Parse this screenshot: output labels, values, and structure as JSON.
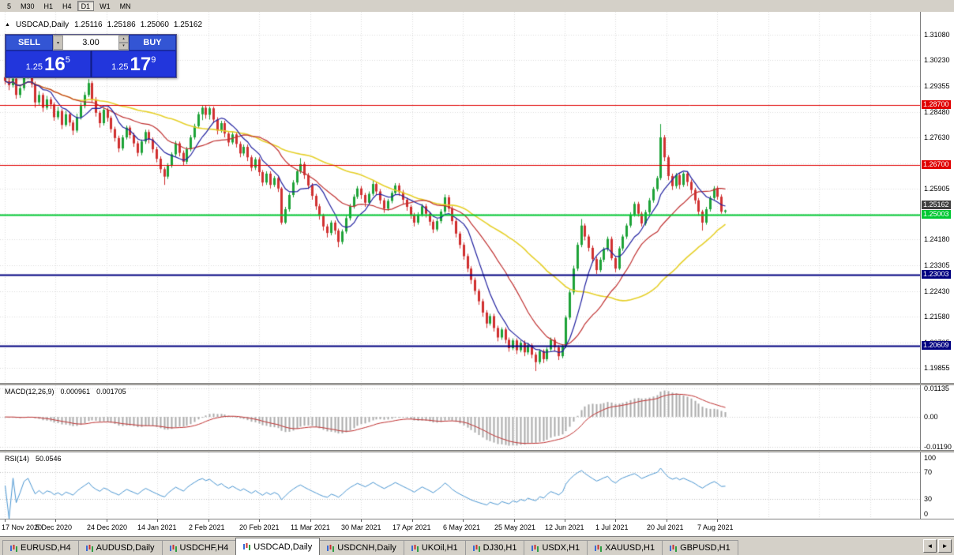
{
  "icons": {
    "triangle": "▲",
    "caret_up": "▴",
    "caret_down": "▾",
    "arrow_left": "◄",
    "arrow_right": "►"
  },
  "toolbar": {
    "buttons": [
      "5",
      "M30",
      "H1",
      "H4",
      "D1",
      "W1",
      "MN"
    ],
    "active": "D1"
  },
  "chart": {
    "title": "USDCAD,Daily",
    "open": "1.25116",
    "high": "1.25186",
    "low": "1.25060",
    "close": "1.25162",
    "price_range": {
      "max": 1.3185,
      "min": 1.1935
    },
    "colors": {
      "up": "#1da237",
      "down": "#d03030",
      "ma_fast": "#2020a0",
      "ma_mid": "#c03030",
      "ma_slow": "#e6d029",
      "grid": "#dcdcdc",
      "bg": "#ffffff"
    },
    "y_axis_labels": [
      "1.31080",
      "1.30230",
      "1.29355",
      "1.28480",
      "1.27630",
      "1.26755",
      "1.25905",
      "1.25030",
      "1.24180",
      "1.23305",
      "1.22430",
      "1.21580",
      "1.20705",
      "1.19855"
    ],
    "x_axis_labels": [
      "17 Nov 2020",
      "5 Dec 2020",
      "24 Dec 2020",
      "14 Jan 2021",
      "2 Feb 2021",
      "20 Feb 2021",
      "11 Mar 2021",
      "30 Mar 2021",
      "17 Apr 2021",
      "6 May 2021",
      "25 May 2021",
      "12 Jun 2021",
      "1 Jul 2021",
      "20 Jul 2021",
      "7 Aug 2021"
    ],
    "hlines": [
      {
        "price": 1.287,
        "label": "1.28700",
        "color": "#e00000",
        "width": 1
      },
      {
        "price": 1.267,
        "label": "1.26700",
        "color": "#e00000",
        "width": 1
      },
      {
        "price": 1.25003,
        "label": "1.25003",
        "color": "#00c832",
        "width": 2
      },
      {
        "price": 1.23003,
        "label": "1.23003",
        "color": "#000080",
        "width": 2
      },
      {
        "price": 1.20609,
        "label": "1.20609",
        "color": "#000080",
        "width": 2
      }
    ],
    "price_tag": {
      "label": "1.25162",
      "price": 1.25162,
      "bg": "#404040"
    }
  },
  "trade_panel": {
    "sell_label": "SELL",
    "buy_label": "BUY",
    "volume": "3.00",
    "sell_price": {
      "prefix": "1.25",
      "pips": "16",
      "point": "5"
    },
    "buy_price": {
      "prefix": "1.25",
      "pips": "17",
      "point": "9"
    }
  },
  "indicators": {
    "macd": {
      "label": "MACD(12,26,9)",
      "value1": "0.000961",
      "value2": "0.001705",
      "axis_labels": [
        "0.01135",
        "0.00",
        "-0.01190"
      ],
      "range": {
        "max": 0.01262,
        "min": -0.01317
      },
      "histogram_color": "#ababab",
      "signal_color": "#c03030"
    },
    "rsi": {
      "label": "RSI(14)",
      "value": "50.0546",
      "axis_labels": [
        "100",
        "70",
        "30",
        "0"
      ],
      "levels": [
        70,
        30
      ],
      "line_color": "#4a96d2"
    }
  },
  "tabs": {
    "items": [
      {
        "label": "EURUSD,H4",
        "active": false
      },
      {
        "label": "AUDUSD,Daily",
        "active": false
      },
      {
        "label": "USDCHF,H4",
        "active": false
      },
      {
        "label": "USDCAD,Daily",
        "active": true
      },
      {
        "label": "USDCNH,Daily",
        "active": false
      },
      {
        "label": "UKOil,H1",
        "active": false
      },
      {
        "label": "DJ30,H1",
        "active": false
      },
      {
        "label": "USDX,H1",
        "active": false
      },
      {
        "label": "XAUUSD,H1",
        "active": false
      },
      {
        "label": "GBPUSD,H1",
        "active": false
      }
    ]
  },
  "tab_nav": {
    "left": "◄",
    "right": "►"
  },
  "chart_data": {
    "type": "candlestick",
    "symbol": "USDCAD",
    "timeframe": "Daily",
    "candles": [
      [
        1.2965,
        1.2978,
        1.294,
        1.2952
      ],
      [
        1.2952,
        1.2962,
        1.2921,
        1.2938
      ],
      [
        1.2938,
        1.2975,
        1.293,
        1.296
      ],
      [
        1.296,
        1.2968,
        1.2892,
        1.2905
      ],
      [
        1.2905,
        1.294,
        1.2895,
        1.2928
      ],
      [
        1.2928,
        1.2985,
        1.292,
        1.2972
      ],
      [
        1.2972,
        1.3004,
        1.296,
        1.299
      ],
      [
        1.299,
        1.2998,
        1.293,
        1.2941
      ],
      [
        1.2941,
        1.295,
        1.2862,
        1.288
      ],
      [
        1.288,
        1.2918,
        1.287,
        1.2905
      ],
      [
        1.2905,
        1.2912,
        1.2848,
        1.2862
      ],
      [
        1.2862,
        1.2902,
        1.2855,
        1.289
      ],
      [
        1.289,
        1.2898,
        1.2858,
        1.2873
      ],
      [
        1.2873,
        1.288,
        1.2818,
        1.283
      ],
      [
        1.283,
        1.2865,
        1.2822,
        1.2851
      ],
      [
        1.2851,
        1.2858,
        1.279,
        1.2804
      ],
      [
        1.2804,
        1.2852,
        1.2798,
        1.284
      ],
      [
        1.284,
        1.2848,
        1.28,
        1.2812
      ],
      [
        1.2812,
        1.282,
        1.277,
        1.2785
      ],
      [
        1.2785,
        1.2842,
        1.2778,
        1.283
      ],
      [
        1.283,
        1.288,
        1.2822,
        1.2868
      ],
      [
        1.2868,
        1.2915,
        1.286,
        1.2905
      ],
      [
        1.2905,
        1.2958,
        1.2898,
        1.2945
      ],
      [
        1.2945,
        1.2952,
        1.2878,
        1.289
      ],
      [
        1.289,
        1.2898,
        1.2832,
        1.2845
      ],
      [
        1.2845,
        1.2852,
        1.2795,
        1.281
      ],
      [
        1.281,
        1.2862,
        1.2802,
        1.2855
      ],
      [
        1.2855,
        1.2862,
        1.2815,
        1.2828
      ],
      [
        1.2828,
        1.2835,
        1.2778,
        1.279
      ],
      [
        1.279,
        1.2798,
        1.2748,
        1.276
      ],
      [
        1.276,
        1.2768,
        1.2712,
        1.2725
      ],
      [
        1.2725,
        1.277,
        1.2718,
        1.2762
      ],
      [
        1.2762,
        1.2802,
        1.2755,
        1.2795
      ],
      [
        1.2795,
        1.2802,
        1.2758,
        1.277
      ],
      [
        1.277,
        1.2778,
        1.273,
        1.2742
      ],
      [
        1.2742,
        1.275,
        1.2698,
        1.271
      ],
      [
        1.271,
        1.2755,
        1.2702,
        1.2748
      ],
      [
        1.2748,
        1.2788,
        1.274,
        1.278
      ],
      [
        1.278,
        1.2788,
        1.2742,
        1.2755
      ],
      [
        1.2755,
        1.2762,
        1.271,
        1.2722
      ],
      [
        1.2722,
        1.273,
        1.2678,
        1.269
      ],
      [
        1.269,
        1.2698,
        1.2642,
        1.2655
      ],
      [
        1.2655,
        1.2662,
        1.2602,
        1.263
      ],
      [
        1.263,
        1.2675,
        1.2622,
        1.2668
      ],
      [
        1.2668,
        1.2712,
        1.266,
        1.2705
      ],
      [
        1.2705,
        1.275,
        1.2698,
        1.2742
      ],
      [
        1.2742,
        1.2748,
        1.2698,
        1.271
      ],
      [
        1.271,
        1.2718,
        1.2668,
        1.268
      ],
      [
        1.268,
        1.273,
        1.2672,
        1.2722
      ],
      [
        1.2722,
        1.277,
        1.2715,
        1.2762
      ],
      [
        1.2762,
        1.2808,
        1.2755,
        1.28
      ],
      [
        1.28,
        1.2848,
        1.2792,
        1.284
      ],
      [
        1.284,
        1.2868,
        1.282,
        1.2862
      ],
      [
        1.2862,
        1.287,
        1.2825,
        1.2838
      ],
      [
        1.2838,
        1.2866,
        1.2822,
        1.286
      ],
      [
        1.286,
        1.2866,
        1.281,
        1.2822
      ],
      [
        1.2822,
        1.283,
        1.2772,
        1.2785
      ],
      [
        1.2785,
        1.2818,
        1.2778,
        1.281
      ],
      [
        1.281,
        1.2818,
        1.2762,
        1.2775
      ],
      [
        1.2775,
        1.2782,
        1.2732,
        1.2745
      ],
      [
        1.2745,
        1.278,
        1.2738,
        1.2772
      ],
      [
        1.2772,
        1.278,
        1.2728,
        1.274
      ],
      [
        1.274,
        1.2748,
        1.2695,
        1.2708
      ],
      [
        1.2708,
        1.2738,
        1.27,
        1.273
      ],
      [
        1.273,
        1.2738,
        1.2682,
        1.2695
      ],
      [
        1.2695,
        1.2702,
        1.2648,
        1.266
      ],
      [
        1.266,
        1.2695,
        1.2652,
        1.2688
      ],
      [
        1.2688,
        1.2695,
        1.2632,
        1.2645
      ],
      [
        1.2645,
        1.2652,
        1.2598,
        1.261
      ],
      [
        1.261,
        1.2648,
        1.2602,
        1.264
      ],
      [
        1.264,
        1.2648,
        1.259,
        1.2602
      ],
      [
        1.2602,
        1.2632,
        1.2595,
        1.2625
      ],
      [
        1.2625,
        1.2632,
        1.2578,
        1.259
      ],
      [
        1.259,
        1.2595,
        1.2468,
        1.2475
      ],
      [
        1.2475,
        1.2528,
        1.247,
        1.252
      ],
      [
        1.252,
        1.2575,
        1.2512,
        1.2568
      ],
      [
        1.2568,
        1.2618,
        1.256,
        1.261
      ],
      [
        1.261,
        1.2655,
        1.2602,
        1.2648
      ],
      [
        1.2648,
        1.2692,
        1.264,
        1.2672
      ],
      [
        1.2672,
        1.268,
        1.2622,
        1.2635
      ],
      [
        1.2635,
        1.2642,
        1.2588,
        1.26
      ],
      [
        1.26,
        1.2608,
        1.2552,
        1.2565
      ],
      [
        1.2565,
        1.2572,
        1.2518,
        1.253
      ],
      [
        1.253,
        1.2538,
        1.2485,
        1.2498
      ],
      [
        1.2498,
        1.2505,
        1.2448,
        1.2462
      ],
      [
        1.2462,
        1.247,
        1.2425,
        1.244
      ],
      [
        1.244,
        1.2482,
        1.2432,
        1.2475
      ],
      [
        1.2475,
        1.2482,
        1.2435,
        1.2448
      ],
      [
        1.2448,
        1.2455,
        1.2392,
        1.241
      ],
      [
        1.241,
        1.2452,
        1.2402,
        1.2445
      ],
      [
        1.2445,
        1.2498,
        1.2438,
        1.249
      ],
      [
        1.249,
        1.2538,
        1.2482,
        1.253
      ],
      [
        1.253,
        1.257,
        1.2522,
        1.2562
      ],
      [
        1.2562,
        1.2598,
        1.2555,
        1.259
      ],
      [
        1.259,
        1.2598,
        1.2555,
        1.2568
      ],
      [
        1.2568,
        1.2575,
        1.2528,
        1.2542
      ],
      [
        1.2542,
        1.258,
        1.2535,
        1.2572
      ],
      [
        1.2572,
        1.2617,
        1.2565,
        1.2605
      ],
      [
        1.2605,
        1.2612,
        1.2568,
        1.258
      ],
      [
        1.258,
        1.2588,
        1.2538,
        1.255
      ],
      [
        1.255,
        1.2558,
        1.2508,
        1.2522
      ],
      [
        1.2522,
        1.2555,
        1.2515,
        1.2548
      ],
      [
        1.2548,
        1.2582,
        1.254,
        1.2575
      ],
      [
        1.2575,
        1.2608,
        1.2568,
        1.26
      ],
      [
        1.26,
        1.2608,
        1.2565,
        1.2578
      ],
      [
        1.2578,
        1.2585,
        1.2538,
        1.2552
      ],
      [
        1.2552,
        1.256,
        1.2515,
        1.2528
      ],
      [
        1.2528,
        1.2535,
        1.2488,
        1.25
      ],
      [
        1.25,
        1.2508,
        1.2462,
        1.2475
      ],
      [
        1.2475,
        1.251,
        1.2468,
        1.2502
      ],
      [
        1.2502,
        1.2538,
        1.2495,
        1.253
      ],
      [
        1.253,
        1.2538,
        1.2492,
        1.2505
      ],
      [
        1.2505,
        1.2512,
        1.2465,
        1.2478
      ],
      [
        1.2478,
        1.2485,
        1.244,
        1.2452
      ],
      [
        1.2452,
        1.2488,
        1.2445,
        1.248
      ],
      [
        1.248,
        1.252,
        1.2472,
        1.2512
      ],
      [
        1.2512,
        1.257,
        1.2505,
        1.256
      ],
      [
        1.256,
        1.2568,
        1.251,
        1.2522
      ],
      [
        1.2522,
        1.253,
        1.2468,
        1.248
      ],
      [
        1.248,
        1.2488,
        1.2425,
        1.2438
      ],
      [
        1.2438,
        1.2445,
        1.2388,
        1.24
      ],
      [
        1.24,
        1.2408,
        1.235,
        1.2362
      ],
      [
        1.2362,
        1.237,
        1.2308,
        1.232
      ],
      [
        1.232,
        1.2328,
        1.2268,
        1.2282
      ],
      [
        1.2282,
        1.229,
        1.2232,
        1.2245
      ],
      [
        1.2245,
        1.2252,
        1.2198,
        1.221
      ],
      [
        1.221,
        1.2218,
        1.2158,
        1.2172
      ],
      [
        1.2172,
        1.218,
        1.212,
        1.2135
      ],
      [
        1.2135,
        1.2168,
        1.2128,
        1.216
      ],
      [
        1.216,
        1.2168,
        1.2108,
        1.212
      ],
      [
        1.212,
        1.2128,
        1.2075,
        1.2088
      ],
      [
        1.2088,
        1.2122,
        1.208,
        1.2115
      ],
      [
        1.2115,
        1.2122,
        1.2068,
        1.208
      ],
      [
        1.208,
        1.2088,
        1.204,
        1.2052
      ],
      [
        1.2052,
        1.2085,
        1.2045,
        1.2078
      ],
      [
        1.2078,
        1.2085,
        1.2032,
        1.2045
      ],
      [
        1.2045,
        1.2078,
        1.2038,
        1.207
      ],
      [
        1.207,
        1.2078,
        1.2025,
        1.2038
      ],
      [
        1.2038,
        1.207,
        1.203,
        1.2062
      ],
      [
        1.2062,
        1.2068,
        1.2018,
        1.203
      ],
      [
        1.203,
        1.2038,
        1.1975,
        1.2005
      ],
      [
        1.2005,
        1.2048,
        1.1998,
        1.2042
      ],
      [
        1.2042,
        1.2048,
        1.2002,
        1.2015
      ],
      [
        1.2015,
        1.2055,
        1.2008,
        1.2048
      ],
      [
        1.2048,
        1.2088,
        1.204,
        1.208
      ],
      [
        1.208,
        1.2088,
        1.2042,
        1.2055
      ],
      [
        1.2055,
        1.2062,
        1.2012,
        1.2025
      ],
      [
        1.2025,
        1.2065,
        1.2018,
        1.2058
      ],
      [
        1.2058,
        1.2162,
        1.2052,
        1.2155
      ],
      [
        1.2155,
        1.2248,
        1.2148,
        1.224
      ],
      [
        1.224,
        1.233,
        1.2232,
        1.232
      ],
      [
        1.232,
        1.2408,
        1.2312,
        1.24
      ],
      [
        1.24,
        1.2487,
        1.2392,
        1.2465
      ],
      [
        1.2465,
        1.2472,
        1.2415,
        1.2428
      ],
      [
        1.2428,
        1.2435,
        1.2378,
        1.239
      ],
      [
        1.239,
        1.2398,
        1.234,
        1.2352
      ],
      [
        1.2352,
        1.236,
        1.2302,
        1.2315
      ],
      [
        1.2315,
        1.2358,
        1.2308,
        1.235
      ],
      [
        1.235,
        1.2392,
        1.2342,
        1.2385
      ],
      [
        1.2385,
        1.2428,
        1.2378,
        1.242
      ],
      [
        1.242,
        1.2428,
        1.2348,
        1.2355
      ],
      [
        1.2355,
        1.2362,
        1.2308,
        1.232
      ],
      [
        1.232,
        1.2395,
        1.2315,
        1.2388
      ],
      [
        1.2388,
        1.2435,
        1.238,
        1.2428
      ],
      [
        1.2428,
        1.2472,
        1.242,
        1.2465
      ],
      [
        1.2465,
        1.251,
        1.2458,
        1.2502
      ],
      [
        1.2502,
        1.2545,
        1.2495,
        1.2538
      ],
      [
        1.2538,
        1.2545,
        1.2495,
        1.2505
      ],
      [
        1.2505,
        1.2512,
        1.2462,
        1.2472
      ],
      [
        1.2472,
        1.2518,
        1.2465,
        1.251
      ],
      [
        1.251,
        1.2558,
        1.2502,
        1.255
      ],
      [
        1.255,
        1.2595,
        1.2542,
        1.2588
      ],
      [
        1.2588,
        1.2632,
        1.258,
        1.2625
      ],
      [
        1.2625,
        1.2807,
        1.2618,
        1.2762
      ],
      [
        1.2762,
        1.277,
        1.2682,
        1.2695
      ],
      [
        1.2695,
        1.2702,
        1.2618,
        1.2632
      ],
      [
        1.2632,
        1.264,
        1.2585,
        1.2598
      ],
      [
        1.2598,
        1.2642,
        1.259,
        1.2635
      ],
      [
        1.2635,
        1.2642,
        1.2588,
        1.2602
      ],
      [
        1.2602,
        1.2645,
        1.2595,
        1.264
      ],
      [
        1.264,
        1.2648,
        1.2598,
        1.2612
      ],
      [
        1.2612,
        1.262,
        1.2572,
        1.2585
      ],
      [
        1.2585,
        1.2592,
        1.2538,
        1.255
      ],
      [
        1.255,
        1.2558,
        1.2498,
        1.2512
      ],
      [
        1.2512,
        1.2518,
        1.2448,
        1.2475
      ],
      [
        1.2475,
        1.2528,
        1.2468,
        1.252
      ],
      [
        1.252,
        1.2565,
        1.2512,
        1.2558
      ],
      [
        1.2558,
        1.2598,
        1.255,
        1.259
      ],
      [
        1.259,
        1.2598,
        1.2552,
        1.2562
      ],
      [
        1.2562,
        1.257,
        1.2505,
        1.2512
      ],
      [
        1.25116,
        1.25186,
        1.2506,
        1.25162
      ]
    ]
  }
}
